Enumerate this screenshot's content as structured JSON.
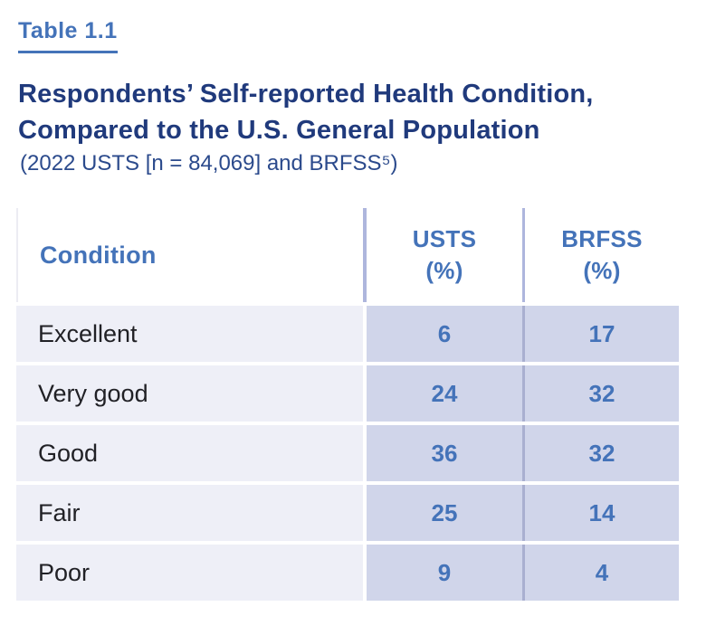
{
  "page": {
    "table_label": "Table 1.1",
    "title_line1": "Respondents’ Self-reported Health Condition,",
    "title_line2": "Compared to the U.S. General Population",
    "subtitle": "(2022 USTS [n = 84,069] and BRFSS⁵)"
  },
  "table": {
    "header": {
      "condition": "Condition",
      "usts_line1": "USTS",
      "usts_line2": "(%)",
      "brfss_line1": "BRFSS",
      "brfss_line2": "(%)"
    },
    "rows": [
      {
        "condition": "Excellent",
        "usts": "6",
        "brfss": "17"
      },
      {
        "condition": "Very good",
        "usts": "24",
        "brfss": "32"
      },
      {
        "condition": "Good",
        "usts": "36",
        "brfss": "32"
      },
      {
        "condition": "Fair",
        "usts": "25",
        "brfss": "14"
      },
      {
        "condition": "Poor",
        "usts": "9",
        "brfss": "4"
      }
    ]
  },
  "colors": {
    "label_blue": "#4473b9",
    "title_navy": "#203a7c",
    "subtitle_navy": "#2b4a8c",
    "value_blue": "#4473b9",
    "light_cell": "#eeeff7",
    "dark_cell": "#d0d5ea",
    "header_divider": "#aeb6dd",
    "column_divider": "#a9afd0",
    "condition_text": "#212126"
  },
  "chart_data": {
    "type": "table",
    "title": "Respondents’ Self-reported Health Condition, Compared to the U.S. General Population",
    "subtitle": "(2022 USTS [n = 84,069] and BRFSS⁵)",
    "columns": [
      "Condition",
      "USTS (%)",
      "BRFSS (%)"
    ],
    "categories": [
      "Excellent",
      "Very good",
      "Good",
      "Fair",
      "Poor"
    ],
    "series": [
      {
        "name": "USTS (%)",
        "values": [
          6,
          24,
          36,
          25,
          9
        ]
      },
      {
        "name": "BRFSS (%)",
        "values": [
          17,
          32,
          32,
          14,
          4
        ]
      }
    ]
  }
}
